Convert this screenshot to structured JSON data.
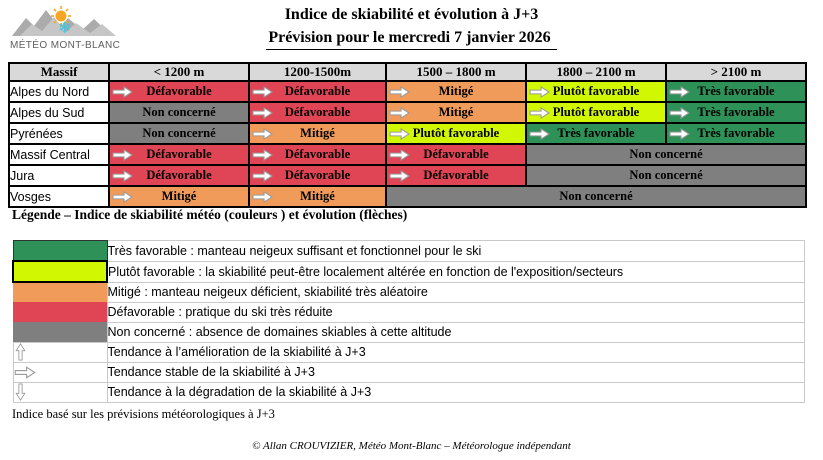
{
  "header": {
    "logo_text": "MÉTÉO MONT-BLANC",
    "title": "Indice de skiabilité et évolution à J+3",
    "subtitle": "Prévision pour le mercredi 7 janvier 2026"
  },
  "colors": {
    "tres_favorable": "#2E9158",
    "plutot_favorable": "#D2F702",
    "mitige": "#F09B5A",
    "defavorable": "#E04555",
    "non_concerne": "#7F7F7F",
    "header_bg": "#D9D9D9",
    "sun": "#F6A623",
    "snowflake": "#3EC6E0",
    "mountain": "#ABABAB"
  },
  "table": {
    "columns": [
      "Massif",
      "< 1200 m",
      "1200-1500m",
      "1500 – 1800 m",
      "1800 – 2100 m",
      "> 2100 m"
    ],
    "rows": [
      {
        "massif": "Alpes du Nord",
        "cells": [
          {
            "label": "Défavorable",
            "status": "defavorable",
            "arrow": "right",
            "colspan": 1
          },
          {
            "label": "Défavorable",
            "status": "defavorable",
            "arrow": "right",
            "colspan": 1
          },
          {
            "label": "Mitigé",
            "status": "mitige",
            "arrow": "right",
            "colspan": 1
          },
          {
            "label": "Plutôt favorable",
            "status": "plutot_favorable",
            "arrow": "right",
            "colspan": 1
          },
          {
            "label": "Très favorable",
            "status": "tres_favorable",
            "arrow": "right",
            "colspan": 1
          }
        ]
      },
      {
        "massif": "Alpes du Sud",
        "cells": [
          {
            "label": "Non concerné",
            "status": "non_concerne",
            "arrow": null,
            "colspan": 1
          },
          {
            "label": "Défavorable",
            "status": "defavorable",
            "arrow": "right",
            "colspan": 1
          },
          {
            "label": "Mitigé",
            "status": "mitige",
            "arrow": "right",
            "colspan": 1
          },
          {
            "label": "Plutôt favorable",
            "status": "plutot_favorable",
            "arrow": "right",
            "colspan": 1
          },
          {
            "label": "Très favorable",
            "status": "tres_favorable",
            "arrow": "right",
            "colspan": 1
          }
        ]
      },
      {
        "massif": "Pyrénées",
        "cells": [
          {
            "label": "Non concerné",
            "status": "non_concerne",
            "arrow": null,
            "colspan": 1
          },
          {
            "label": "Mitigé",
            "status": "mitige",
            "arrow": "right",
            "colspan": 1
          },
          {
            "label": "Plutôt favorable",
            "status": "plutot_favorable",
            "arrow": "right",
            "colspan": 1
          },
          {
            "label": "Très favorable",
            "status": "tres_favorable",
            "arrow": "right",
            "colspan": 1
          },
          {
            "label": "Très favorable",
            "status": "tres_favorable",
            "arrow": "right",
            "colspan": 1
          }
        ]
      },
      {
        "massif": "Massif Central",
        "cells": [
          {
            "label": "Défavorable",
            "status": "defavorable",
            "arrow": "right",
            "colspan": 1
          },
          {
            "label": "Défavorable",
            "status": "defavorable",
            "arrow": "right",
            "colspan": 1
          },
          {
            "label": "Défavorable",
            "status": "defavorable",
            "arrow": "right",
            "colspan": 1
          },
          {
            "label": "Non concerné",
            "status": "non_concerne",
            "arrow": null,
            "colspan": 2
          }
        ]
      },
      {
        "massif": "Jura",
        "cells": [
          {
            "label": "Défavorable",
            "status": "defavorable",
            "arrow": "right",
            "colspan": 1
          },
          {
            "label": "Défavorable",
            "status": "defavorable",
            "arrow": "right",
            "colspan": 1
          },
          {
            "label": "Défavorable",
            "status": "defavorable",
            "arrow": "right",
            "colspan": 1
          },
          {
            "label": "Non concerné",
            "status": "non_concerne",
            "arrow": null,
            "colspan": 2
          }
        ]
      },
      {
        "massif": "Vosges",
        "cells": [
          {
            "label": "Mitigé",
            "status": "mitige",
            "arrow": "right",
            "colspan": 1
          },
          {
            "label": "Mitigé",
            "status": "mitige",
            "arrow": "right",
            "colspan": 1
          },
          {
            "label": "Non concerné",
            "status": "non_concerne",
            "arrow": null,
            "colspan": 3
          }
        ]
      }
    ]
  },
  "legend": {
    "heading": "Légende – Indice de skiabilité météo (couleurs ) et évolution (flèches)",
    "items": [
      {
        "swatch": "tres_favorable",
        "text": "Très favorable : manteau neigeux suffisant et fonctionnel pour le ski"
      },
      {
        "swatch": "plutot_favorable",
        "text": "Plutôt favorable : la skiabilité peut-être localement altérée en fonction de l'exposition/secteurs"
      },
      {
        "swatch": "mitige",
        "text": "Mitigé : manteau neigeux déficient, skiabilité très aléatoire"
      },
      {
        "swatch": "defavorable",
        "text": "Défavorable : pratique du ski très réduite"
      },
      {
        "swatch": "non_concerne",
        "text": "Non concerné : absence de domaines skiables à cette altitude"
      },
      {
        "swatch": "arrow-up",
        "text": "Tendance à l’amélioration de la skiabilité à J+3"
      },
      {
        "swatch": "arrow-right",
        "text": "Tendance stable de la skiabilité à J+3"
      },
      {
        "swatch": "arrow-down",
        "text": "Tendance à la dégradation de la skiabilité à J+3"
      }
    ]
  },
  "footer": {
    "note": "Indice basé sur les prévisions météorologiques à J+3",
    "copyright": "© Allan CROUVIZIER, Météo Mont-Blanc – Météorologue indépendant"
  }
}
